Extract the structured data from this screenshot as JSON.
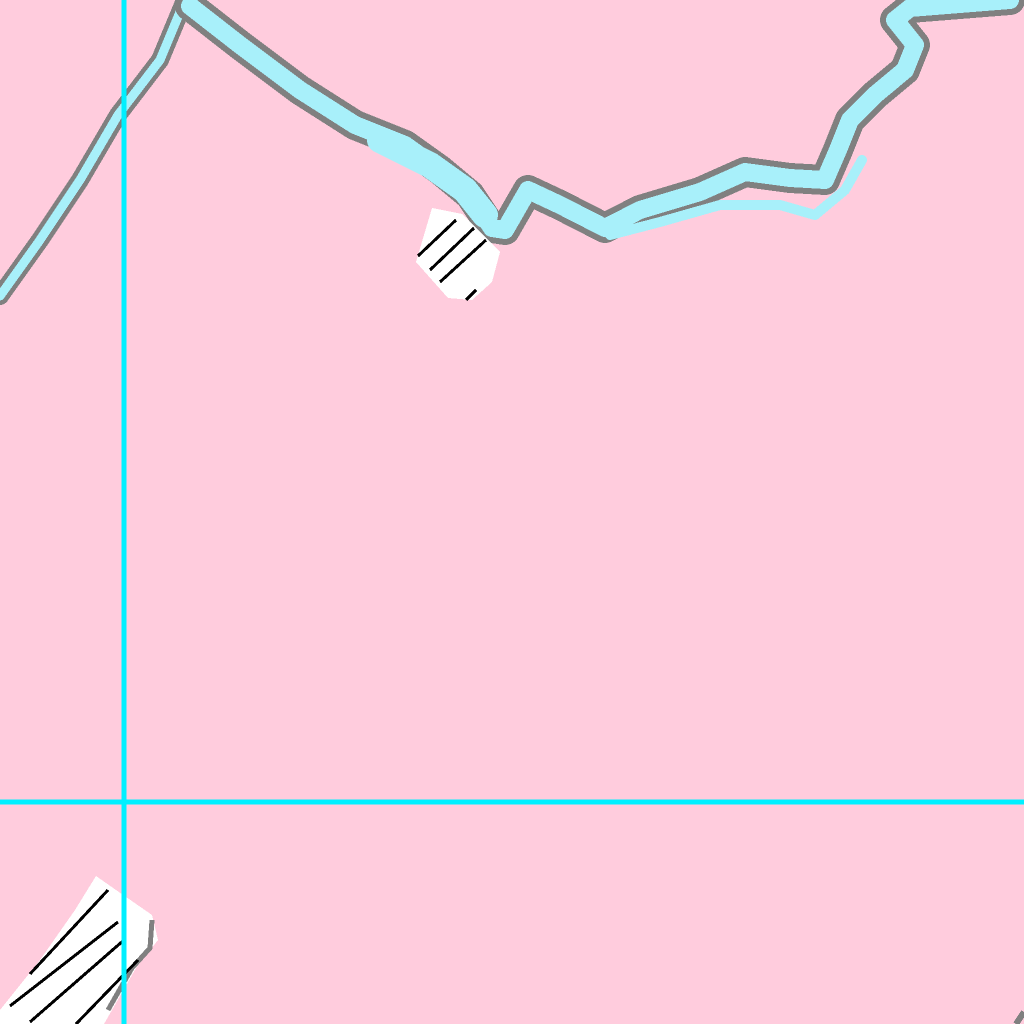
{
  "map": {
    "colors": {
      "land": "#ffccdd",
      "water": "#a8f0fa",
      "bank": "#808080",
      "grid": "#00f0ff",
      "marsh_fill": "#ffffff",
      "marsh_hatch": "#000000"
    },
    "features": [
      {
        "kind": "river",
        "label": "river-channel"
      },
      {
        "kind": "marsh",
        "label": "marsh-patch"
      },
      {
        "kind": "grid",
        "label": "grid-lines"
      }
    ]
  }
}
